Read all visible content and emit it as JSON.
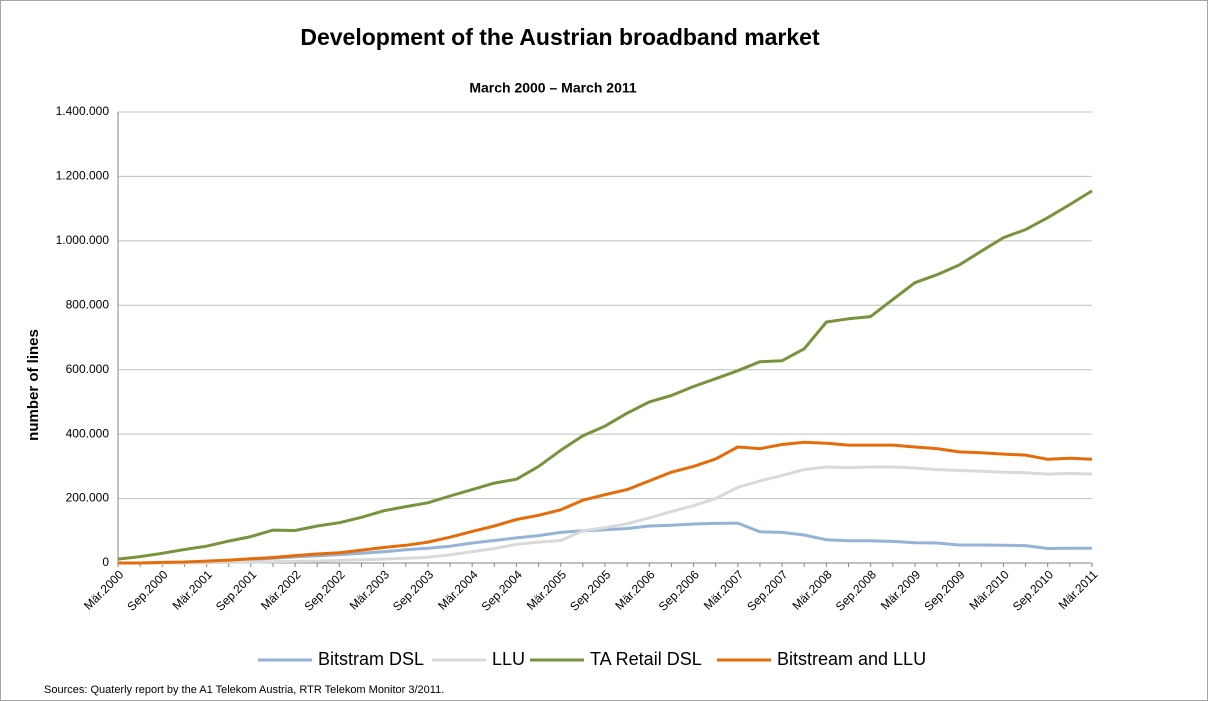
{
  "chart_data": {
    "type": "line",
    "title": "Development of the Austrian broadband market",
    "subtitle": "March 2000 – March 2011",
    "y_label": "number of lines",
    "source": "Sources: Quaterly report by the A1 Telekom Austria, RTR Telekom Monitor  3/2011.",
    "categories": [
      "Mär.2000",
      null,
      "Sep.2000",
      null,
      "Mär.2001",
      null,
      "Sep.2001",
      null,
      "Mär.2002",
      null,
      "Sep.2002",
      null,
      "Mär.2003",
      null,
      "Sep.2003",
      null,
      "Mär.2004",
      null,
      "Sep.2004",
      null,
      "Mär.2005",
      null,
      "Sep.2005",
      null,
      "Mär.2006",
      null,
      "Sep.2006",
      null,
      "Mär.2007",
      null,
      "Sep.2007",
      null,
      "Mär.2008",
      null,
      "Sep.2008",
      null,
      "Mär.2009",
      null,
      "Sep.2009",
      null,
      "Mär.2010",
      null,
      "Sep.2010",
      null,
      "Mär.2011"
    ],
    "series": [
      {
        "name": "Bitstram DSL",
        "color": "#95b3d7",
        "values": [
          0,
          0,
          1000,
          2000,
          4000,
          8000,
          11000,
          15000,
          19000,
          22000,
          26000,
          30000,
          35000,
          41000,
          46000,
          52000,
          62000,
          70000,
          78000,
          85000,
          95000,
          100000,
          103000,
          107000,
          115000,
          117000,
          121000,
          123000,
          124000,
          97000,
          95000,
          87000,
          72000,
          69000,
          69000,
          67000,
          63000,
          62000,
          56000,
          56000,
          55000,
          54000,
          45000,
          46000,
          46000
        ]
      },
      {
        "name": "LLU",
        "color": "#d9d9d9",
        "values": [
          0,
          0,
          0,
          0,
          1000,
          2000,
          3000,
          4000,
          5000,
          6000,
          8000,
          10000,
          12000,
          15000,
          18000,
          25000,
          35000,
          45000,
          58000,
          65000,
          70000,
          100000,
          110000,
          122000,
          140000,
          160000,
          178000,
          200000,
          235000,
          255000,
          272000,
          290000,
          298000,
          296000,
          298000,
          298000,
          295000,
          290000,
          287000,
          285000,
          282000,
          280000,
          276000,
          278000,
          276000
        ]
      },
      {
        "name": "TA Retail DSL",
        "color": "#77933c",
        "values": [
          12000,
          20000,
          30000,
          42000,
          52000,
          68000,
          82000,
          102000,
          101000,
          115000,
          125000,
          142000,
          162000,
          175000,
          187000,
          208000,
          228000,
          248000,
          260000,
          300000,
          350000,
          395000,
          425000,
          465000,
          500000,
          520000,
          548000,
          572000,
          597000,
          625000,
          628000,
          665000,
          748000,
          758000,
          765000,
          818000,
          870000,
          895000,
          925000,
          968000,
          1010000,
          1035000,
          1072000,
          1113000,
          1155000
        ]
      },
      {
        "name": "Bitstream and LLU",
        "color": "#e46c0a",
        "values": [
          0,
          0,
          2000,
          3000,
          6000,
          9000,
          13000,
          17000,
          23000,
          28000,
          32000,
          40000,
          48000,
          55000,
          65000,
          80000,
          98000,
          115000,
          135000,
          148000,
          165000,
          195000,
          212000,
          228000,
          255000,
          282000,
          300000,
          323000,
          360000,
          355000,
          368000,
          375000,
          372000,
          366000,
          366000,
          366000,
          360000,
          355000,
          345000,
          342000,
          338000,
          335000,
          322000,
          325000,
          322000
        ]
      }
    ],
    "ylim": [
      0,
      1400000
    ],
    "yticks": [
      0,
      {
        "value": 200000,
        "label": "200.000"
      },
      {
        "value": 400000,
        "label": "400.000"
      },
      {
        "value": 600000,
        "label": "600.000"
      },
      {
        "value": 800000,
        "label": "800.000"
      },
      {
        "value": 1000000,
        "label": "1.000.000"
      },
      {
        "value": 1200000,
        "label": "1.200.000"
      },
      {
        "value": 1400000,
        "label": "1.400.000"
      }
    ],
    "grid": true,
    "legend": "bottom"
  }
}
